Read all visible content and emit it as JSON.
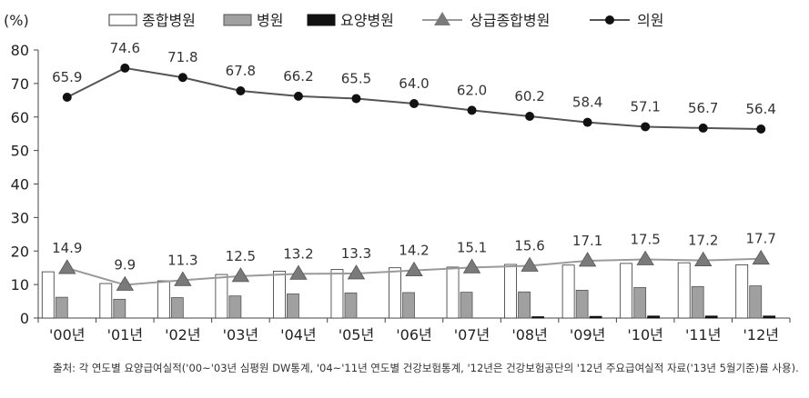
{
  "chart_data": {
    "type": "bar",
    "ylabel": "(%)",
    "ylim": [
      0,
      80
    ],
    "yticks": [
      0,
      10,
      20,
      30,
      40,
      50,
      60,
      70,
      80
    ],
    "categories": [
      "'00년",
      "'01년",
      "'02년",
      "'03년",
      "'04년",
      "'05년",
      "'06년",
      "'07년",
      "'08년",
      "'09년",
      "'10년",
      "'11년",
      "'12년"
    ],
    "series": [
      {
        "name": "종합병원",
        "kind": "bar",
        "color": "#ffffff",
        "stroke": "#333333",
        "values": [
          13.8,
          10.3,
          11.1,
          13.0,
          14.0,
          14.5,
          15.0,
          15.2,
          16.0,
          15.8,
          16.3,
          16.5,
          15.9
        ]
      },
      {
        "name": "병원",
        "kind": "bar",
        "color": "#a0a0a0",
        "stroke": "#555555",
        "values": [
          6.2,
          5.6,
          6.1,
          6.6,
          7.2,
          7.5,
          7.6,
          7.7,
          7.8,
          8.3,
          9.1,
          9.4,
          9.6
        ]
      },
      {
        "name": "요양병원",
        "kind": "bar",
        "color": "#111111",
        "stroke": "#111111",
        "values": [
          0,
          0,
          0,
          0,
          0,
          0,
          0,
          0,
          0.4,
          0.5,
          0.6,
          0.6,
          0.6
        ]
      },
      {
        "name": "상급종합병원",
        "kind": "line-triangle",
        "color": "#9a9a9a",
        "marker": "#7a7a7a",
        "values": [
          14.9,
          9.9,
          11.3,
          12.5,
          13.2,
          13.3,
          14.2,
          15.1,
          15.6,
          17.1,
          17.5,
          17.2,
          17.7
        ],
        "labels": [
          "14.9",
          "9.9",
          "11.3",
          "12.5",
          "13.2",
          "13.3",
          "14.2",
          "15.1",
          "15.6",
          "17.1",
          "17.5",
          "17.2",
          "17.7"
        ]
      },
      {
        "name": "의원",
        "kind": "line-circle",
        "color": "#555555",
        "marker": "#111111",
        "values": [
          65.9,
          74.6,
          71.8,
          67.8,
          66.2,
          65.5,
          64.0,
          62.0,
          60.2,
          58.4,
          57.1,
          56.7,
          56.4
        ],
        "labels": [
          "65.9",
          "74.6",
          "71.8",
          "67.8",
          "66.2",
          "65.5",
          "64.0",
          "62.0",
          "60.2",
          "58.4",
          "57.1",
          "56.7",
          "56.4"
        ]
      }
    ],
    "legend_position": "top"
  },
  "source_note": "출처: 각 연도별 요양급여실적('00~'03년 심평원 DW통계, '04~'11년 연도별 건강보험통계, '12년은 건강보험공단의 '12년 주요급여실적 자료('13년 5월기준)를 사용)."
}
